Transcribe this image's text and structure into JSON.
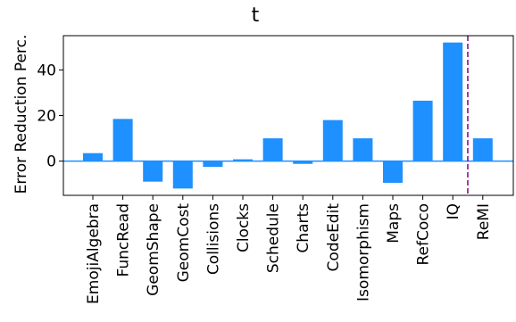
{
  "chart_data": {
    "type": "bar",
    "title": "t",
    "xlabel": "",
    "ylabel": "Error Reduction Perc.",
    "ylim": [
      -15,
      55
    ],
    "yticks": [
      0,
      20,
      40
    ],
    "grid": false,
    "categories": [
      "EmojiAlgebra",
      "FuncRead",
      "GeomShape",
      "GeomCost",
      "Collisions",
      "Clocks",
      "Schedule",
      "Charts",
      "CodeEdit",
      "Isomorphism",
      "Maps",
      "RefCoco",
      "IQ",
      "ReMI"
    ],
    "values": [
      3.5,
      18.5,
      -9,
      -12,
      -2.5,
      0.8,
      10,
      -1.2,
      18,
      10,
      -9.5,
      26.5,
      52,
      10
    ],
    "bar_color": "#1e90ff",
    "zero_line_color": "#1e90ff",
    "divider_color": "#800080",
    "divider_between": [
      12,
      13
    ]
  }
}
